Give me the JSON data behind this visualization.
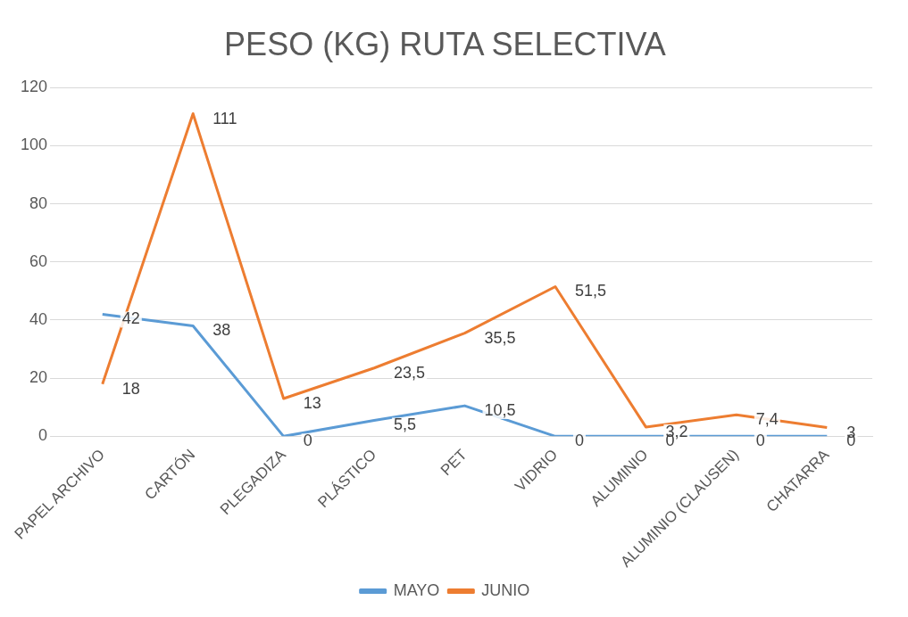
{
  "chart_data": {
    "type": "line",
    "title": "PESO (KG) RUTA SELECTIVA",
    "categories": [
      "PAPEL ARCHIVO",
      "CARTÓN",
      "PLEGADIZA",
      "PLÁSTICO",
      "PET",
      "VIDRIO",
      "ALUMINIO",
      "ALUMINIO (CLAUSEN)",
      "CHATARRA"
    ],
    "series": [
      {
        "name": "MAYO",
        "color": "#5b9bd5",
        "values": [
          42,
          38,
          0,
          5.5,
          10.5,
          0,
          0,
          0,
          0
        ],
        "value_labels": [
          "42",
          "38",
          "0",
          "5,5",
          "10,5",
          "0",
          "0",
          "0",
          "0"
        ]
      },
      {
        "name": "JUNIO",
        "color": "#ed7d31",
        "values": [
          18,
          111,
          13,
          23.5,
          35.5,
          51.5,
          3.2,
          7.4,
          3
        ],
        "value_labels": [
          "18",
          "111",
          "13",
          "23,5",
          "35,5",
          "51,5",
          "3,2",
          "7,4",
          "3"
        ]
      }
    ],
    "ylim": [
      0,
      120
    ],
    "yticks": [
      0,
      20,
      40,
      60,
      80,
      100,
      120
    ],
    "grid": "y",
    "legend": "bottom",
    "marker": "none",
    "line_style": "solid"
  }
}
